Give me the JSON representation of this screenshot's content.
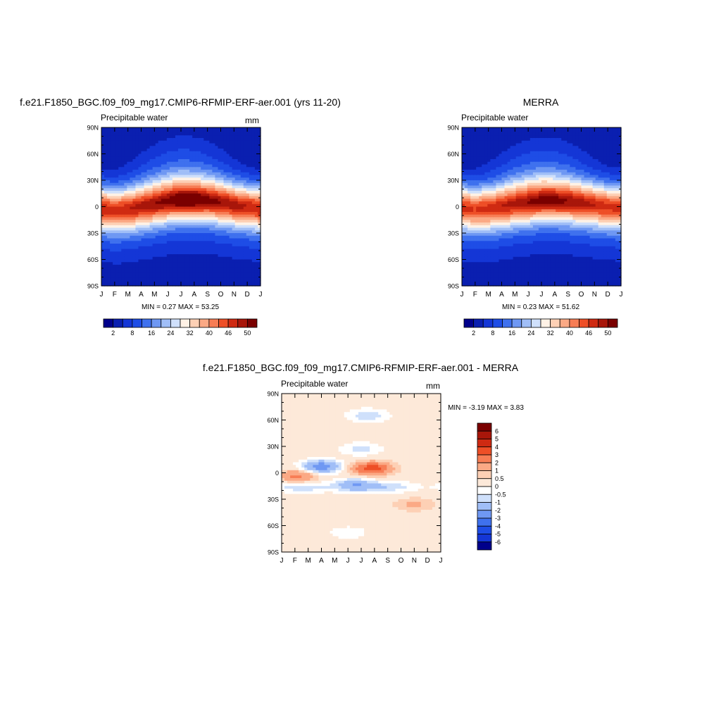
{
  "chart_data": [
    {
      "type": "heatmap",
      "title": "f.e21.F1850_BGC.f09_f09_mg17.CMIP6-RFMIP-ERF-aer.001 (yrs 11-20)",
      "subtitle_left": "Precipitable water",
      "units": "mm",
      "x_ticks": [
        "J",
        "F",
        "M",
        "A",
        "M",
        "J",
        "J",
        "A",
        "S",
        "O",
        "N",
        "D",
        "J"
      ],
      "y_ticks": [
        "90N",
        "60N",
        "30N",
        "0",
        "30S",
        "60S",
        "90S"
      ],
      "ylim": [
        -90,
        90
      ],
      "stats": "MIN =   0.27 MAX =  53.25",
      "itcz_lat": [
        -2,
        -4,
        -3,
        0,
        3,
        6,
        8,
        8,
        7,
        5,
        2,
        0,
        -2
      ],
      "peak_value": [
        48,
        47,
        48,
        49,
        50,
        51,
        53,
        53,
        51,
        50,
        49,
        48,
        48
      ],
      "colorbar": {
        "orientation": "horizontal",
        "labels": [
          "2",
          "8",
          "16",
          "24",
          "32",
          "40",
          "46",
          "50"
        ],
        "colors": [
          "#00008b",
          "#0a1fb0",
          "#1436d6",
          "#1e4de6",
          "#3f71ee",
          "#6f98f3",
          "#a0bef7",
          "#cfe0fb",
          "#fff2e6",
          "#fdd0b5",
          "#fba985",
          "#f77d55",
          "#ee4f27",
          "#cf2a12",
          "#a8160a",
          "#7a0000"
        ]
      }
    },
    {
      "type": "heatmap",
      "title": "MERRA",
      "subtitle_left": "Precipitable water",
      "units": "",
      "x_ticks": [
        "J",
        "F",
        "M",
        "A",
        "M",
        "J",
        "J",
        "A",
        "S",
        "O",
        "N",
        "D",
        "J"
      ],
      "y_ticks": [
        "90N",
        "60N",
        "30N",
        "0",
        "30S",
        "60S",
        "90S"
      ],
      "ylim": [
        -90,
        90
      ],
      "stats": "MIN =   0.23 MAX =  51.62",
      "itcz_lat": [
        -1,
        -3,
        -2,
        0,
        3,
        5,
        7,
        7,
        6,
        4,
        2,
        0,
        -1
      ],
      "peak_value": [
        47,
        46,
        47,
        48,
        49,
        50,
        51,
        51,
        50,
        49,
        48,
        47,
        47
      ],
      "colorbar": {
        "orientation": "horizontal",
        "labels": [
          "2",
          "8",
          "16",
          "24",
          "32",
          "40",
          "46",
          "50"
        ],
        "colors": [
          "#00008b",
          "#0a1fb0",
          "#1436d6",
          "#1e4de6",
          "#3f71ee",
          "#6f98f3",
          "#a0bef7",
          "#cfe0fb",
          "#fff2e6",
          "#fdd0b5",
          "#fba985",
          "#f77d55",
          "#ee4f27",
          "#cf2a12",
          "#a8160a",
          "#7a0000"
        ]
      }
    },
    {
      "type": "heatmap",
      "title": "f.e21.F1850_BGC.f09_f09_mg17.CMIP6-RFMIP-ERF-aer.001 - MERRA",
      "subtitle_left": "Precipitable water",
      "units": "mm",
      "x_ticks": [
        "J",
        "F",
        "M",
        "A",
        "M",
        "J",
        "J",
        "A",
        "S",
        "O",
        "N",
        "D",
        "J"
      ],
      "y_ticks": [
        "90N",
        "60N",
        "30N",
        "0",
        "30S",
        "60S",
        "90S"
      ],
      "ylim": [
        -90,
        90
      ],
      "stats": "MIN =  -3.19 MAX =   3.83",
      "difference_features": [
        {
          "month": 6.8,
          "lat": 5,
          "value": 3.5
        },
        {
          "month": 3.0,
          "lat": 7,
          "value": -3.0
        },
        {
          "month": 1.2,
          "lat": -4,
          "value": 2.0
        },
        {
          "month": 5.5,
          "lat": -14,
          "value": -2.0
        },
        {
          "month": 6.0,
          "lat": 27,
          "value": -1.0
        },
        {
          "month": 6.5,
          "lat": 65,
          "value": -1.2
        },
        {
          "month": 5.0,
          "lat": -68,
          "value": -0.6
        },
        {
          "month": 10.0,
          "lat": -36,
          "value": 0.9
        }
      ],
      "colorbar": {
        "orientation": "vertical",
        "labels": [
          "6",
          "5",
          "4",
          "3",
          "2",
          "1",
          "0.5",
          "0",
          "-0.5",
          "-1",
          "-2",
          "-3",
          "-4",
          "-5",
          "-6"
        ],
        "colors": [
          "#7a0000",
          "#a8160a",
          "#cf2a12",
          "#ee4f27",
          "#f77d55",
          "#fba985",
          "#fdd0b5",
          "#fde9d9",
          "#ffffff",
          "#cfe0fb",
          "#a0bef7",
          "#6f98f3",
          "#3f71ee",
          "#1e4de6",
          "#1436d6",
          "#00008b"
        ]
      }
    }
  ]
}
